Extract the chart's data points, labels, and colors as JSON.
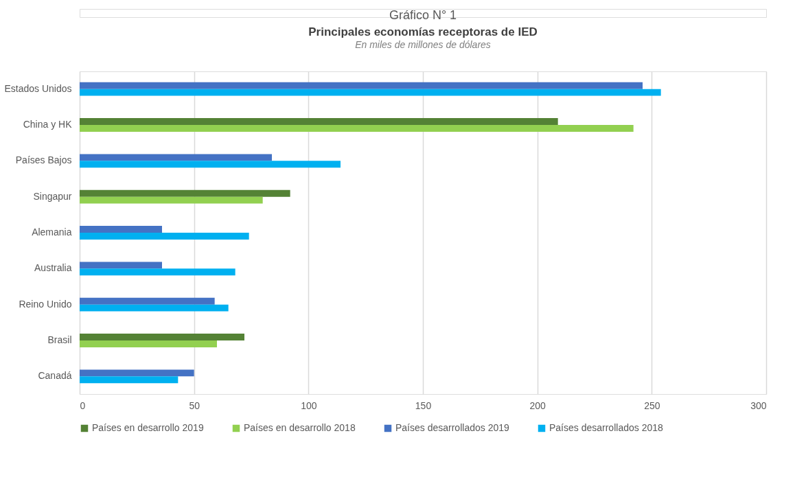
{
  "chart_data": {
    "type": "bar",
    "orientation": "horizontal",
    "title": "Principales economías receptoras de IED",
    "subtitle": "En miles de millones de dólares",
    "annotations": [
      "Gráfico N° 1"
    ],
    "categories": [
      "Estados Unidos",
      "China y HK",
      "Países Bajos",
      "Singapur",
      "Alemania",
      "Australia",
      "Reino Unido",
      "Brasil",
      "Canadá"
    ],
    "series": [
      {
        "name": "Países en desarrollo 2019",
        "color": "#548235",
        "values": [
          null,
          209,
          null,
          92,
          null,
          null,
          null,
          72,
          null
        ]
      },
      {
        "name": "Países en desarrollo 2018",
        "color": "#92d050",
        "values": [
          null,
          242,
          null,
          80,
          null,
          null,
          null,
          60,
          null
        ]
      },
      {
        "name": "Países desarrollados 2019",
        "color": "#4472c4",
        "values": [
          246,
          null,
          84,
          null,
          36,
          36,
          59,
          null,
          50
        ]
      },
      {
        "name": "Países desarrollados 2018",
        "color": "#00b0f0",
        "values": [
          254,
          null,
          114,
          null,
          74,
          68,
          65,
          null,
          43
        ]
      }
    ],
    "xlim": [
      0,
      300
    ],
    "xticks": [
      0,
      50,
      100,
      150,
      200,
      250,
      300
    ],
    "grid": "x",
    "legend": "bottom"
  }
}
